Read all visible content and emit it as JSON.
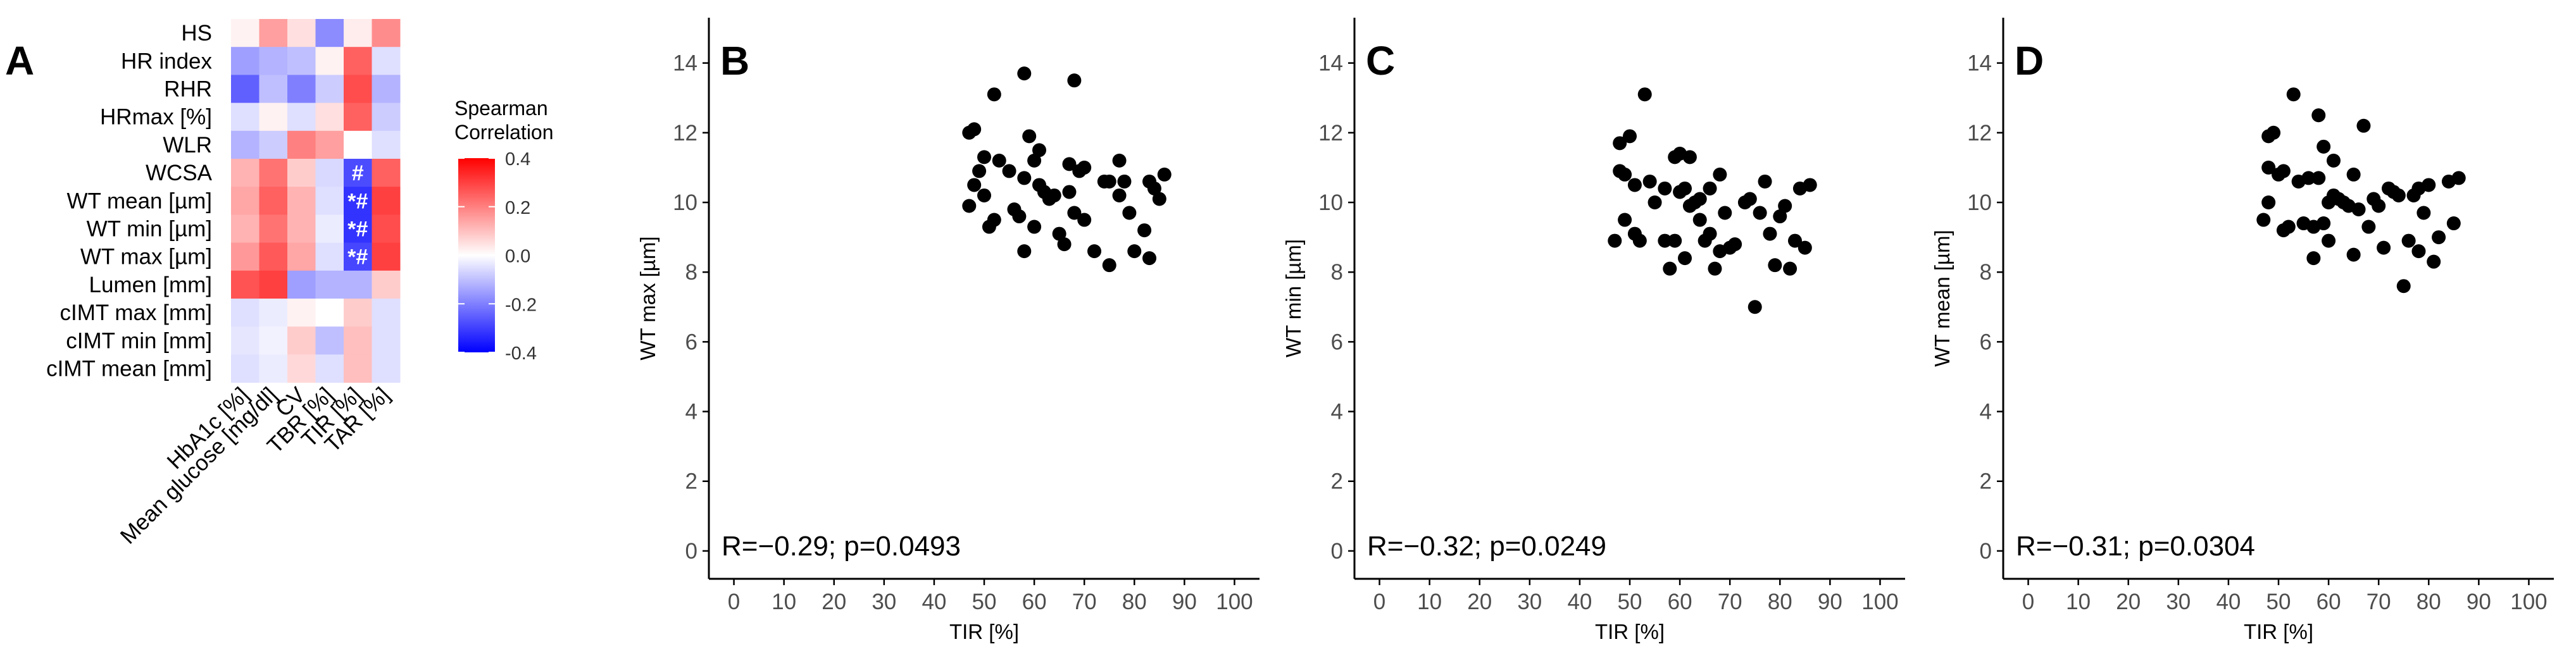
{
  "chart_data": [
    {
      "panel_label": "A",
      "type": "heatmap",
      "title": "",
      "legend_title_lines": [
        "Spearman",
        "Correlation"
      ],
      "legend_ticks": [
        0.4,
        0.2,
        0.0,
        -0.2,
        -0.4
      ],
      "legend_tick_labels": [
        "0.4",
        "0.2",
        "0.0",
        "-0.2",
        "-0.4"
      ],
      "value_range": [
        -0.4,
        0.4
      ],
      "colors": {
        "high": "#ff0000",
        "mid": "#ffffff",
        "low": "#0000ff"
      },
      "row_labels": [
        "HS",
        "HR index",
        "RHR",
        "HRmax [%]",
        "WLR",
        "WCSA",
        "WT mean [µm]",
        "WT min [µm]",
        "WT max [µm]",
        "Lumen [mm]",
        "cIMT max [mm]",
        "cIMT min [mm]",
        "cIMT mean [mm]"
      ],
      "col_labels": [
        "HbA1c [%]",
        "Mean glucose [mg/dl]",
        "CV",
        "TBR [%]",
        "TIR [%]",
        "TAR [%]"
      ],
      "values": [
        [
          0.02,
          0.15,
          0.05,
          -0.18,
          0.03,
          0.18
        ],
        [
          -0.15,
          -0.12,
          -0.1,
          0.02,
          0.25,
          -0.05
        ],
        [
          -0.25,
          -0.1,
          -0.2,
          -0.08,
          0.28,
          -0.12
        ],
        [
          -0.05,
          0.02,
          -0.05,
          0.05,
          0.25,
          -0.08
        ],
        [
          -0.12,
          -0.08,
          0.2,
          0.15,
          0.0,
          -0.05
        ],
        [
          0.12,
          0.22,
          0.08,
          -0.06,
          -0.28,
          0.25
        ],
        [
          0.14,
          0.25,
          0.12,
          -0.05,
          -0.32,
          0.3
        ],
        [
          0.12,
          0.22,
          0.12,
          -0.03,
          -0.32,
          0.28
        ],
        [
          0.16,
          0.26,
          0.14,
          -0.05,
          -0.29,
          0.3
        ],
        [
          0.27,
          0.3,
          -0.15,
          -0.12,
          -0.12,
          0.08
        ],
        [
          -0.05,
          -0.03,
          0.02,
          0.0,
          0.08,
          -0.05
        ],
        [
          -0.04,
          -0.02,
          0.08,
          -0.1,
          0.1,
          -0.05
        ],
        [
          -0.05,
          -0.03,
          0.06,
          -0.05,
          0.1,
          -0.05
        ]
      ],
      "annotations": [
        {
          "row": 5,
          "col": 4,
          "text": "#"
        },
        {
          "row": 6,
          "col": 4,
          "text": "*#"
        },
        {
          "row": 7,
          "col": 4,
          "text": "*#"
        },
        {
          "row": 8,
          "col": 4,
          "text": "*#"
        }
      ]
    },
    {
      "panel_label": "B",
      "type": "scatter",
      "title": "",
      "xlabel": "TIR [%]",
      "ylabel": "WT max [µm]",
      "xlim": [
        -5,
        105
      ],
      "ylim": [
        -0.8,
        15.3
      ],
      "xticks": [
        0,
        10,
        20,
        30,
        40,
        50,
        60,
        70,
        80,
        90,
        100
      ],
      "yticks": [
        0,
        2,
        4,
        6,
        8,
        10,
        12,
        14
      ],
      "annotation": "R=−0.29; p=0.0493",
      "points": [
        [
          47,
          9.9
        ],
        [
          47,
          12.0
        ],
        [
          48,
          10.5
        ],
        [
          48,
          12.1
        ],
        [
          49,
          10.9
        ],
        [
          50,
          11.3
        ],
        [
          50,
          10.2
        ],
        [
          51,
          9.3
        ],
        [
          52,
          9.5
        ],
        [
          52,
          13.1
        ],
        [
          53,
          11.2
        ],
        [
          55,
          10.9
        ],
        [
          56,
          9.8
        ],
        [
          57,
          9.6
        ],
        [
          58,
          8.6
        ],
        [
          58,
          13.7
        ],
        [
          58,
          10.7
        ],
        [
          59,
          11.9
        ],
        [
          60,
          9.3
        ],
        [
          60,
          11.2
        ],
        [
          61,
          10.5
        ],
        [
          61,
          11.5
        ],
        [
          62,
          10.3
        ],
        [
          63,
          10.1
        ],
        [
          64,
          10.2
        ],
        [
          65,
          9.1
        ],
        [
          66,
          8.8
        ],
        [
          67,
          11.1
        ],
        [
          67,
          10.3
        ],
        [
          68,
          9.7
        ],
        [
          68,
          13.5
        ],
        [
          69,
          10.9
        ],
        [
          70,
          11.0
        ],
        [
          70,
          9.5
        ],
        [
          72,
          8.6
        ],
        [
          74,
          10.6
        ],
        [
          75,
          8.2
        ],
        [
          75,
          10.6
        ],
        [
          77,
          10.2
        ],
        [
          77,
          11.2
        ],
        [
          78,
          10.6
        ],
        [
          79,
          9.7
        ],
        [
          80,
          8.6
        ],
        [
          82,
          9.2
        ],
        [
          83,
          10.6
        ],
        [
          83,
          8.4
        ],
        [
          84,
          10.4
        ],
        [
          85,
          10.1
        ],
        [
          86,
          10.8
        ]
      ]
    },
    {
      "panel_label": "C",
      "type": "scatter",
      "title": "",
      "xlabel": "TIR [%]",
      "ylabel": "WT min [µm]",
      "xlim": [
        -5,
        105
      ],
      "ylim": [
        -0.8,
        15.3
      ],
      "xticks": [
        0,
        10,
        20,
        30,
        40,
        50,
        60,
        70,
        80,
        90,
        100
      ],
      "yticks": [
        0,
        2,
        4,
        6,
        8,
        10,
        12,
        14
      ],
      "annotation": "R=−0.32; p=0.0249",
      "points": [
        [
          47,
          8.9
        ],
        [
          48,
          10.9
        ],
        [
          48,
          11.7
        ],
        [
          49,
          9.5
        ],
        [
          49,
          10.8
        ],
        [
          50,
          11.9
        ],
        [
          51,
          9.1
        ],
        [
          51,
          10.5
        ],
        [
          52,
          8.9
        ],
        [
          53,
          13.1
        ],
        [
          54,
          10.6
        ],
        [
          55,
          10.0
        ],
        [
          57,
          8.9
        ],
        [
          57,
          10.4
        ],
        [
          58,
          8.1
        ],
        [
          59,
          8.9
        ],
        [
          59,
          11.3
        ],
        [
          60,
          10.3
        ],
        [
          60,
          11.4
        ],
        [
          61,
          10.4
        ],
        [
          61,
          8.4
        ],
        [
          62,
          11.3
        ],
        [
          62,
          9.9
        ],
        [
          63,
          10.0
        ],
        [
          64,
          10.1
        ],
        [
          64,
          9.5
        ],
        [
          65,
          8.9
        ],
        [
          66,
          10.4
        ],
        [
          66,
          9.1
        ],
        [
          67,
          8.1
        ],
        [
          68,
          10.8
        ],
        [
          68,
          8.6
        ],
        [
          69,
          9.7
        ],
        [
          70,
          8.7
        ],
        [
          71,
          8.8
        ],
        [
          73,
          10.0
        ],
        [
          74,
          10.1
        ],
        [
          75,
          7.0
        ],
        [
          76,
          9.7
        ],
        [
          77,
          10.6
        ],
        [
          78,
          9.1
        ],
        [
          79,
          8.2
        ],
        [
          80,
          9.6
        ],
        [
          81,
          9.9
        ],
        [
          82,
          8.1
        ],
        [
          83,
          8.9
        ],
        [
          84,
          10.4
        ],
        [
          85,
          8.7
        ],
        [
          86,
          10.5
        ]
      ]
    },
    {
      "panel_label": "D",
      "type": "scatter",
      "title": "",
      "xlabel": "TIR [%]",
      "ylabel": "WT mean [µm]",
      "xlim": [
        -5,
        105
      ],
      "ylim": [
        -0.8,
        15.3
      ],
      "xticks": [
        0,
        10,
        20,
        30,
        40,
        50,
        60,
        70,
        80,
        90,
        100
      ],
      "yticks": [
        0,
        2,
        4,
        6,
        8,
        10,
        12,
        14
      ],
      "annotation": "R=−0.31; p=0.0304",
      "points": [
        [
          47,
          9.5
        ],
        [
          48,
          10.0
        ],
        [
          48,
          11.0
        ],
        [
          48,
          11.9
        ],
        [
          49,
          12.0
        ],
        [
          50,
          10.8
        ],
        [
          51,
          9.2
        ],
        [
          51,
          10.9
        ],
        [
          52,
          9.3
        ],
        [
          53,
          13.1
        ],
        [
          54,
          10.6
        ],
        [
          55,
          9.4
        ],
        [
          56,
          10.7
        ],
        [
          57,
          9.3
        ],
        [
          57,
          8.4
        ],
        [
          58,
          10.7
        ],
        [
          58,
          12.5
        ],
        [
          59,
          9.4
        ],
        [
          59,
          11.6
        ],
        [
          60,
          8.9
        ],
        [
          60,
          10.0
        ],
        [
          61,
          11.2
        ],
        [
          61,
          10.2
        ],
        [
          62,
          10.1
        ],
        [
          63,
          10.0
        ],
        [
          64,
          9.9
        ],
        [
          65,
          10.8
        ],
        [
          65,
          8.5
        ],
        [
          66,
          9.8
        ],
        [
          67,
          12.2
        ],
        [
          68,
          9.3
        ],
        [
          69,
          10.1
        ],
        [
          70,
          9.9
        ],
        [
          71,
          8.7
        ],
        [
          72,
          10.4
        ],
        [
          73,
          10.3
        ],
        [
          74,
          10.2
        ],
        [
          75,
          7.6
        ],
        [
          76,
          8.9
        ],
        [
          77,
          10.2
        ],
        [
          78,
          10.4
        ],
        [
          78,
          8.6
        ],
        [
          79,
          9.7
        ],
        [
          80,
          10.5
        ],
        [
          81,
          8.3
        ],
        [
          82,
          9.0
        ],
        [
          84,
          10.6
        ],
        [
          85,
          9.4
        ],
        [
          86,
          10.7
        ]
      ]
    }
  ]
}
